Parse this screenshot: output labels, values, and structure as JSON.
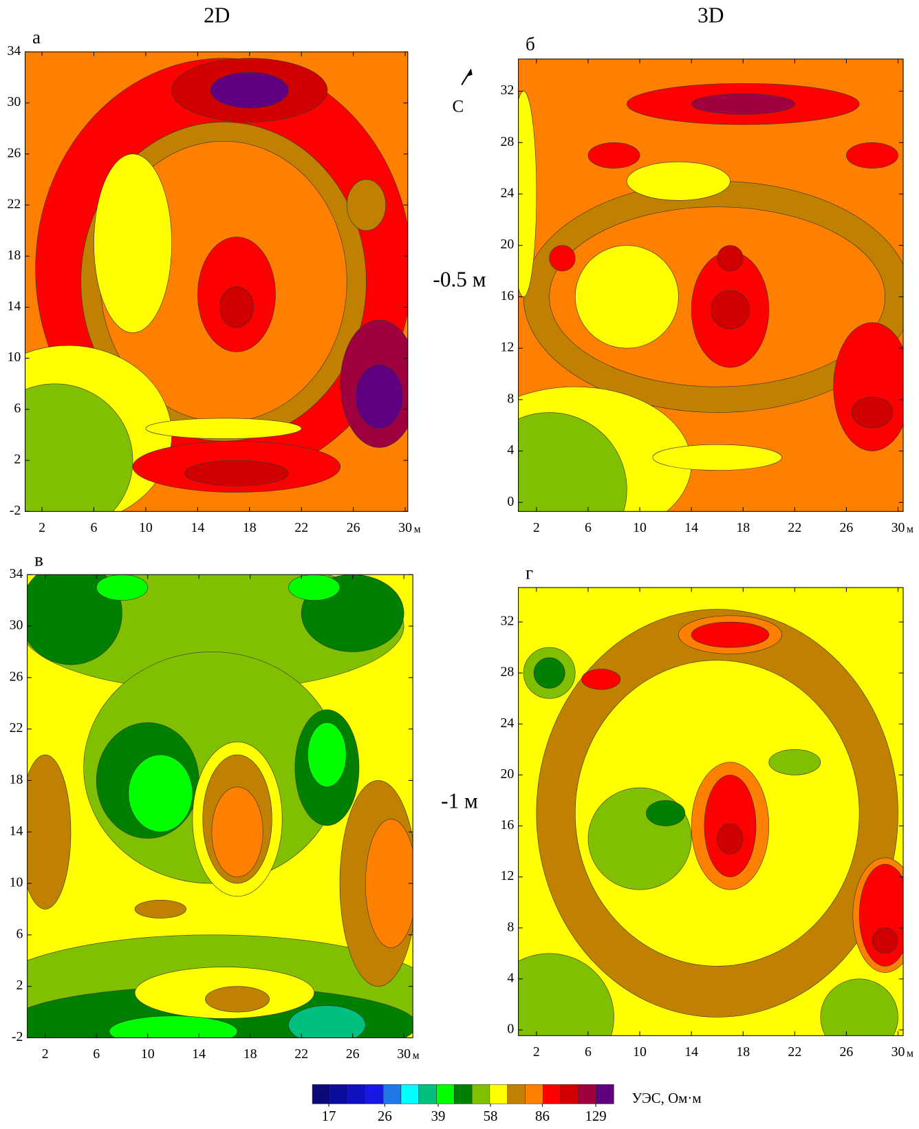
{
  "chart_data": [
    {
      "type": "contour",
      "label": "а",
      "xlim": [
        0.7,
        30.2
      ],
      "ylim": [
        -2,
        34
      ],
      "xticks": [
        2,
        6,
        10,
        14,
        18,
        22,
        26,
        30
      ],
      "yticks": [
        -2,
        2,
        6,
        10,
        14,
        18,
        22,
        26,
        30,
        34
      ],
      "x_unit": "м"
    },
    {
      "type": "contour",
      "label": "б",
      "xlim": [
        0.6,
        30.4
      ],
      "ylim": [
        -0.7,
        34.5
      ],
      "xticks": [
        2,
        6,
        10,
        14,
        18,
        22,
        26,
        30
      ],
      "yticks": [
        0,
        4,
        8,
        12,
        16,
        20,
        24,
        28,
        32
      ],
      "x_unit": "м"
    },
    {
      "type": "contour",
      "label": "в",
      "xlim": [
        0.6,
        30.7
      ],
      "ylim": [
        -2,
        34
      ],
      "xticks": [
        2,
        6,
        10,
        14,
        18,
        22,
        26,
        30
      ],
      "yticks": [
        -2,
        2,
        6,
        10,
        14,
        18,
        22,
        26,
        30,
        34
      ],
      "x_unit": "м"
    },
    {
      "type": "contour",
      "label": "г",
      "xlim": [
        0.6,
        30.4
      ],
      "ylim": [
        -0.45,
        34.7
      ],
      "xticks": [
        2,
        6,
        10,
        14,
        18,
        22,
        26,
        30
      ],
      "yticks": [
        0,
        4,
        8,
        12,
        16,
        20,
        24,
        28,
        32
      ],
      "x_unit": "м"
    }
  ],
  "column_titles": [
    "2D",
    "3D"
  ],
  "row_titles": [
    "-0.5 м",
    "-1 м"
  ],
  "north": "С",
  "colorbar": {
    "label": "УЭС, Ом·м",
    "log": true,
    "lim": [
      15,
      148
    ],
    "ticks": [
      17,
      26,
      39,
      58,
      86,
      129
    ],
    "colors": [
      "#0a0a78",
      "#0c0c9c",
      "#1010c0",
      "#1818e0",
      "#1e78e8",
      "#00ffff",
      "#00c080",
      "#00ff00",
      "#008000",
      "#80c000",
      "#ffff00",
      "#c08000",
      "#ff8000",
      "#ff0000",
      "#d00000",
      "#a00040",
      "#600080"
    ]
  }
}
